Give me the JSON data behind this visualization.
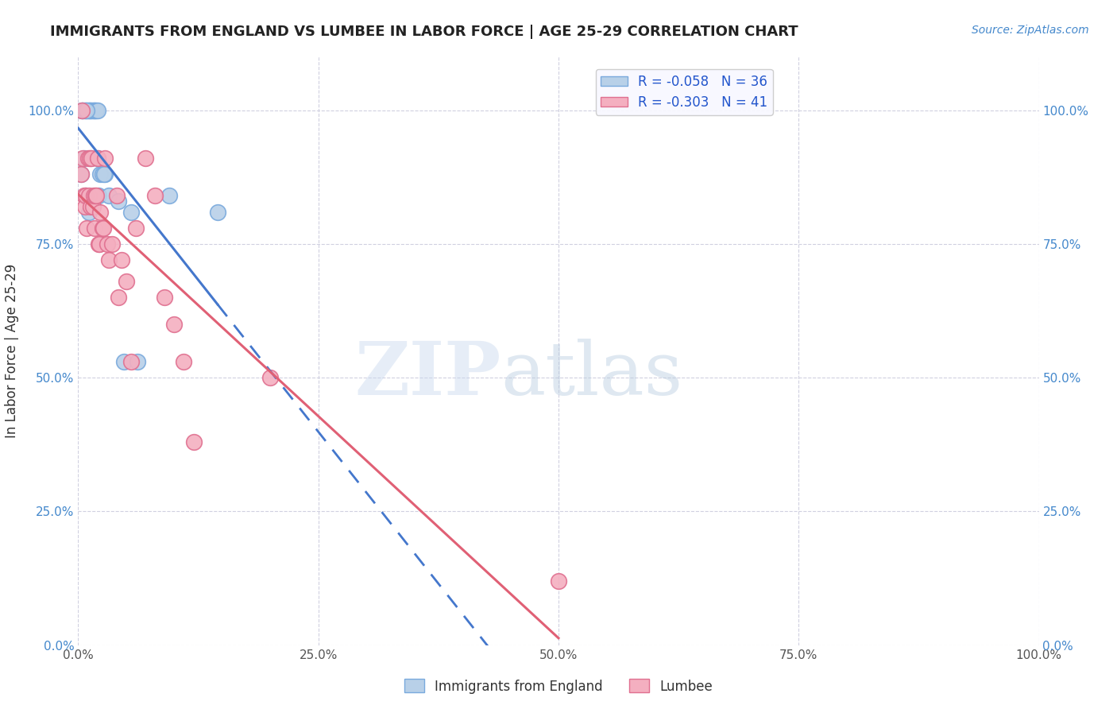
{
  "title": "IMMIGRANTS FROM ENGLAND VS LUMBEE IN LABOR FORCE | AGE 25-29 CORRELATION CHART",
  "source": "Source: ZipAtlas.com",
  "ylabel": "In Labor Force | Age 25-29",
  "r_england": -0.058,
  "n_england": 36,
  "r_lumbee": -0.303,
  "n_lumbee": 41,
  "england_color": "#b8d0e8",
  "lumbee_color": "#f4afc0",
  "england_edge": "#7aaadd",
  "lumbee_edge": "#e07090",
  "trend_england_color": "#4477cc",
  "trend_lumbee_color": "#e06075",
  "england_x": [
    0.4,
    0.5,
    0.6,
    0.7,
    0.8,
    0.9,
    1.0,
    1.1,
    1.2,
    1.3,
    1.4,
    1.5,
    1.6,
    1.7,
    1.8,
    1.9,
    2.0,
    2.1,
    2.3,
    2.5,
    2.8,
    3.2,
    4.2,
    4.8,
    5.5,
    6.2,
    9.5,
    14.5,
    0.3,
    0.5,
    0.7,
    0.9,
    1.1,
    1.3,
    2.0,
    2.7
  ],
  "england_y": [
    100,
    100,
    91,
    100,
    84,
    100,
    100,
    100,
    100,
    100,
    100,
    100,
    100,
    100,
    100,
    100,
    100,
    84,
    88,
    88,
    88,
    84,
    83,
    53,
    81,
    53,
    84,
    81,
    88,
    100,
    100,
    100,
    81,
    91,
    91,
    88
  ],
  "lumbee_x": [
    0.3,
    0.4,
    0.5,
    0.6,
    0.7,
    0.8,
    0.9,
    1.0,
    1.1,
    1.2,
    1.3,
    1.4,
    1.5,
    1.6,
    1.7,
    1.8,
    1.9,
    2.0,
    2.1,
    2.2,
    2.3,
    2.5,
    2.6,
    2.8,
    3.0,
    3.2,
    3.5,
    4.0,
    4.2,
    4.5,
    5.0,
    5.5,
    6.0,
    7.0,
    8.0,
    9.0,
    10.0,
    11.0,
    12.0,
    20.0,
    50.0
  ],
  "lumbee_y": [
    88,
    100,
    91,
    84,
    82,
    84,
    78,
    91,
    84,
    91,
    82,
    91,
    82,
    84,
    78,
    84,
    84,
    91,
    75,
    75,
    81,
    78,
    78,
    91,
    75,
    72,
    75,
    84,
    65,
    72,
    68,
    53,
    78,
    91,
    84,
    65,
    60,
    53,
    38,
    50,
    12
  ],
  "xlim": [
    0,
    100
  ],
  "ylim": [
    0,
    110
  ],
  "yticks": [
    0,
    25,
    50,
    75,
    100
  ],
  "ytick_labels": [
    "0.0%",
    "25.0%",
    "50.0%",
    "75.0%",
    "100.0%"
  ],
  "xticks": [
    0,
    25,
    50,
    75,
    100
  ],
  "xtick_labels": [
    "0.0%",
    "25.0%",
    "50.0%",
    "75.0%",
    "100.0%"
  ],
  "grid_color": "#d0d0e0",
  "bg_color": "#ffffff",
  "legend_box_color": "#f8f8ff"
}
